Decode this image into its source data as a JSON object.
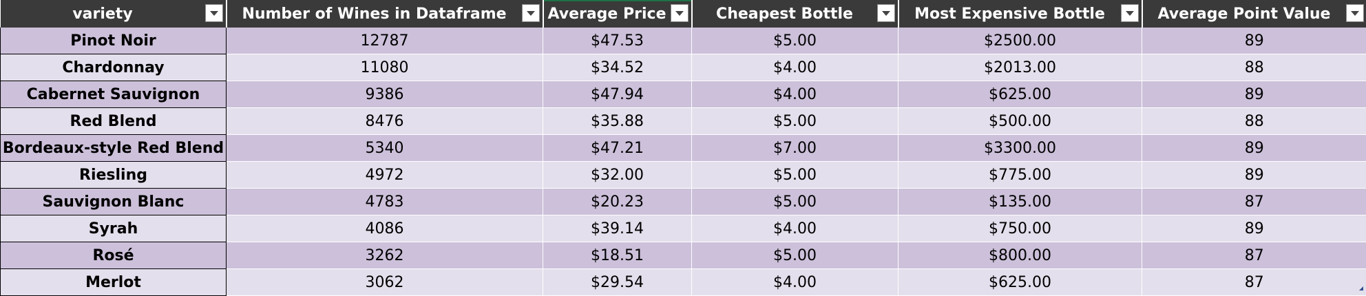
{
  "table": {
    "headers": [
      "variety",
      "Number of Wines in Dataframe",
      "Average Price",
      "Cheapest Bottle",
      "Most Expensive Bottle",
      "Average Point Value"
    ],
    "rows": [
      [
        "Pinot Noir",
        "12787",
        "$47.53",
        "$5.00",
        "$2500.00",
        "89"
      ],
      [
        "Chardonnay",
        "11080",
        "$34.52",
        "$4.00",
        "$2013.00",
        "88"
      ],
      [
        "Cabernet Sauvignon",
        "9386",
        "$47.94",
        "$4.00",
        "$625.00",
        "89"
      ],
      [
        "Red Blend",
        "8476",
        "$35.88",
        "$5.00",
        "$500.00",
        "88"
      ],
      [
        "Bordeaux-style Red Blend",
        "5340",
        "$47.21",
        "$7.00",
        "$3300.00",
        "89"
      ],
      [
        "Riesling",
        "4972",
        "$32.00",
        "$5.00",
        "$775.00",
        "89"
      ],
      [
        "Sauvignon Blanc",
        "4783",
        "$20.23",
        "$5.00",
        "$135.00",
        "87"
      ],
      [
        "Syrah",
        "4086",
        "$39.14",
        "$4.00",
        "$750.00",
        "89"
      ],
      [
        "Rosé",
        "3262",
        "$18.51",
        "$5.00",
        "$800.00",
        "87"
      ],
      [
        "Merlot",
        "3062",
        "$29.54",
        "$4.00",
        "$625.00",
        "87"
      ]
    ]
  },
  "icons": {
    "filter": "filter-dropdown-icon",
    "resize": "table-resize-handle-icon"
  },
  "colors": {
    "header_bg": "#3a3a3a",
    "row_band_dark": "#ccc0da",
    "row_band_light": "#e4dfec",
    "active_column_marker": "#1e7145"
  }
}
